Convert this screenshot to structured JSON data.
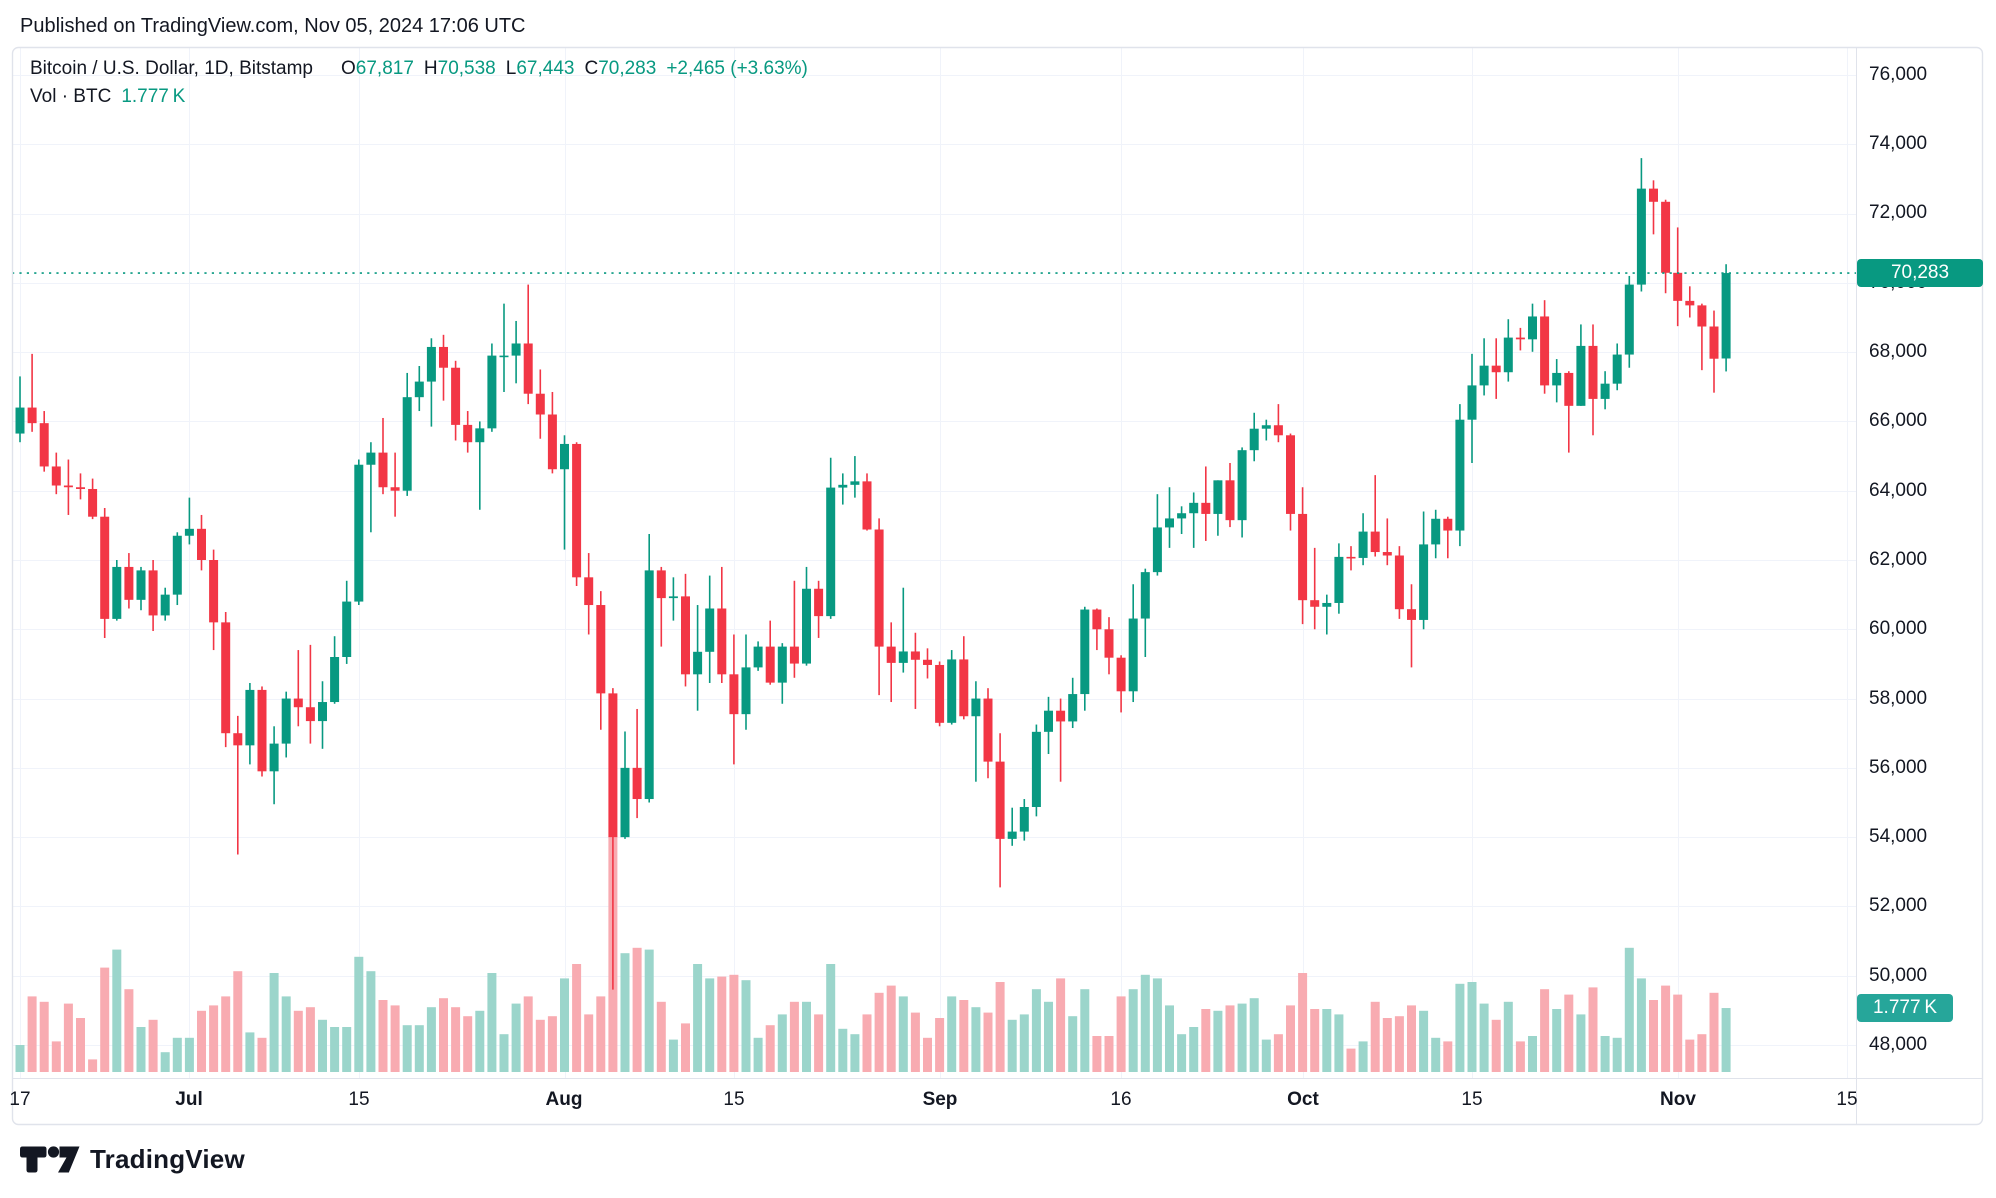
{
  "header": {
    "published_text": "Published on TradingView.com, Nov 05, 2024 17:06 UTC"
  },
  "legend": {
    "title": "Bitcoin / U.S. Dollar, 1D, Bitstamp",
    "o_label": "O",
    "o_value": "67,817",
    "h_label": "H",
    "h_value": "70,538",
    "l_label": "L",
    "l_value": "67,443",
    "c_label": "C",
    "c_value": "70,283",
    "change": "+2,465 (+3.63%)",
    "vol_label": "Vol · BTC",
    "vol_value": "1.777 K"
  },
  "badges": {
    "price": "70,283",
    "volume": "1.777 K"
  },
  "watermark": {
    "brand": "TradingView"
  },
  "colors": {
    "up": "#089981",
    "down": "#f23645",
    "vol_up": "#9bd5cb",
    "vol_down": "#f8abb1",
    "grid": "#f0f3fa",
    "border": "#e0e3eb",
    "text": "#131722",
    "accent": "#089981",
    "price_badge_bg": "#089981",
    "vol_badge_bg": "#26a69a"
  },
  "y_axis": {
    "labels": [
      {
        "text": "76,000",
        "value": 76000
      },
      {
        "text": "74,000",
        "value": 74000
      },
      {
        "text": "72,000",
        "value": 72000
      },
      {
        "text": "70,000",
        "value": 70000
      },
      {
        "text": "68,000",
        "value": 68000
      },
      {
        "text": "66,000",
        "value": 66000
      },
      {
        "text": "64,000",
        "value": 64000
      },
      {
        "text": "62,000",
        "value": 62000
      },
      {
        "text": "60,000",
        "value": 60000
      },
      {
        "text": "58,000",
        "value": 58000
      },
      {
        "text": "56,000",
        "value": 56000
      },
      {
        "text": "54,000",
        "value": 54000
      },
      {
        "text": "52,000",
        "value": 52000
      },
      {
        "text": "50,000",
        "value": 50000
      },
      {
        "text": "48,000",
        "value": 48000
      }
    ]
  },
  "x_axis": {
    "labels": [
      {
        "text": "17",
        "day_index": 0,
        "bold": false
      },
      {
        "text": "Jul",
        "day_index": 14,
        "bold": true
      },
      {
        "text": "15",
        "day_index": 28,
        "bold": false
      },
      {
        "text": "Aug",
        "day_index": 45,
        "bold": true
      },
      {
        "text": "15",
        "day_index": 59,
        "bold": false
      },
      {
        "text": "Sep",
        "day_index": 76,
        "bold": true
      },
      {
        "text": "16",
        "day_index": 91,
        "bold": false
      },
      {
        "text": "Oct",
        "day_index": 106,
        "bold": true
      },
      {
        "text": "15",
        "day_index": 120,
        "bold": false
      },
      {
        "text": "Nov",
        "day_index": 137,
        "bold": true
      },
      {
        "text": "15",
        "day_index": 151,
        "bold": false
      }
    ]
  },
  "chart_data": {
    "type": "candlestick+volume",
    "symbol": "Bitcoin / U.S. Dollar",
    "interval": "1D",
    "exchange": "Bitstamp",
    "title": "Bitcoin / U.S. Dollar, 1D, Bitstamp",
    "legend_position": "top-left",
    "grid": true,
    "ylim": [
      47000,
      76800
    ],
    "last_price": 70283,
    "last_ohlc": {
      "open": 67817,
      "high": 70538,
      "low": 67443,
      "close": 70283,
      "change": 2465,
      "change_pct": 3.63
    },
    "last_volume_btc_k": 1.777,
    "volume_unit": "K BTC",
    "candles_format": [
      "date",
      "open",
      "high",
      "low",
      "close",
      "volume_k"
    ],
    "candles": [
      [
        "2024-06-16",
        65900,
        66700,
        65500,
        66550,
        0.5
      ],
      [
        "2024-06-17",
        65650,
        67300,
        65400,
        66400,
        0.75
      ],
      [
        "2024-06-18",
        66400,
        67950,
        65700,
        65950,
        2.1
      ],
      [
        "2024-06-19",
        65950,
        66300,
        64550,
        64700,
        1.95
      ],
      [
        "2024-06-20",
        64700,
        65100,
        63900,
        64150,
        0.85
      ],
      [
        "2024-06-21",
        64150,
        64900,
        63300,
        64100,
        1.9
      ],
      [
        "2024-06-22",
        64100,
        64500,
        63750,
        64050,
        1.5
      ],
      [
        "2024-06-23",
        64050,
        64350,
        63180,
        63250,
        0.35
      ],
      [
        "2024-06-24",
        63250,
        63500,
        59750,
        60300,
        2.9
      ],
      [
        "2024-06-25",
        60300,
        62000,
        60250,
        61800,
        3.4
      ],
      [
        "2024-06-26",
        61800,
        62200,
        60600,
        60850,
        2.3
      ],
      [
        "2024-06-27",
        60850,
        61800,
        60550,
        61700,
        1.25
      ],
      [
        "2024-06-28",
        61700,
        62000,
        59950,
        60400,
        1.45
      ],
      [
        "2024-06-29",
        60400,
        61200,
        60250,
        61000,
        0.55
      ],
      [
        "2024-06-30",
        61000,
        62800,
        60700,
        62700,
        0.95
      ],
      [
        "2024-07-01",
        62700,
        63800,
        62450,
        62900,
        0.95
      ],
      [
        "2024-07-02",
        62900,
        63300,
        61700,
        62000,
        1.7
      ],
      [
        "2024-07-03",
        62000,
        62300,
        59400,
        60200,
        1.85
      ],
      [
        "2024-07-04",
        60200,
        60500,
        56600,
        57000,
        2.1
      ],
      [
        "2024-07-05",
        57000,
        57500,
        53500,
        56650,
        2.8
      ],
      [
        "2024-07-06",
        56650,
        58450,
        56100,
        58250,
        1.1
      ],
      [
        "2024-07-07",
        58250,
        58350,
        55750,
        55900,
        0.95
      ],
      [
        "2024-07-08",
        55900,
        57200,
        54950,
        56700,
        2.75
      ],
      [
        "2024-07-09",
        56700,
        58200,
        56300,
        58000,
        2.1
      ],
      [
        "2024-07-10",
        58000,
        59400,
        57200,
        57750,
        1.7
      ],
      [
        "2024-07-11",
        57750,
        59550,
        56700,
        57350,
        1.8
      ],
      [
        "2024-07-12",
        57350,
        58500,
        56550,
        57900,
        1.45
      ],
      [
        "2024-07-13",
        57900,
        59800,
        57850,
        59200,
        1.25
      ],
      [
        "2024-07-14",
        59200,
        61400,
        59000,
        60800,
        1.25
      ],
      [
        "2024-07-15",
        60800,
        64900,
        60700,
        64750,
        3.2
      ],
      [
        "2024-07-16",
        64750,
        65400,
        62800,
        65100,
        2.8
      ],
      [
        "2024-07-17",
        65100,
        66100,
        63900,
        64100,
        2.0
      ],
      [
        "2024-07-18",
        64100,
        65100,
        63250,
        64000,
        1.85
      ],
      [
        "2024-07-19",
        64000,
        67400,
        63850,
        66700,
        1.3
      ],
      [
        "2024-07-20",
        66700,
        67600,
        66300,
        67150,
        1.3
      ],
      [
        "2024-07-21",
        67150,
        68400,
        65850,
        68150,
        1.8
      ],
      [
        "2024-07-22",
        68150,
        68500,
        66600,
        67550,
        2.05
      ],
      [
        "2024-07-23",
        67550,
        67750,
        65450,
        65900,
        1.8
      ],
      [
        "2024-07-24",
        65900,
        66300,
        65100,
        65400,
        1.55
      ],
      [
        "2024-07-25",
        65400,
        66000,
        63450,
        65800,
        1.7
      ],
      [
        "2024-07-26",
        65800,
        68250,
        65700,
        67900,
        2.75
      ],
      [
        "2024-07-27",
        67900,
        69400,
        66850,
        67900,
        1.05
      ],
      [
        "2024-07-28",
        67900,
        68900,
        67100,
        68250,
        1.9
      ],
      [
        "2024-07-29",
        68250,
        69950,
        66500,
        66800,
        2.1
      ],
      [
        "2024-07-30",
        66800,
        67500,
        65500,
        66200,
        1.45
      ],
      [
        "2024-07-31",
        66200,
        66850,
        64500,
        64620,
        1.55
      ],
      [
        "2024-08-01",
        64620,
        65600,
        62300,
        65350,
        2.6
      ],
      [
        "2024-08-02",
        65350,
        65400,
        61250,
        61500,
        3.0
      ],
      [
        "2024-08-03",
        61500,
        62200,
        59850,
        60700,
        1.6
      ],
      [
        "2024-08-04",
        60700,
        61100,
        57100,
        58150,
        2.1
      ],
      [
        "2024-08-05",
        58150,
        58300,
        49600,
        54000,
        6.55
      ],
      [
        "2024-08-06",
        54000,
        57050,
        53950,
        56000,
        3.3
      ],
      [
        "2024-08-07",
        56000,
        57700,
        54550,
        55100,
        3.45
      ],
      [
        "2024-08-08",
        55100,
        62750,
        55000,
        61700,
        3.4
      ],
      [
        "2024-08-09",
        61700,
        61800,
        59500,
        60900,
        1.95
      ],
      [
        "2024-08-10",
        60900,
        61500,
        60250,
        60950,
        0.9
      ],
      [
        "2024-08-11",
        60950,
        61600,
        58350,
        58700,
        1.35
      ],
      [
        "2024-08-12",
        58700,
        60700,
        57650,
        59350,
        3.0
      ],
      [
        "2024-08-13",
        59350,
        61550,
        58450,
        60600,
        2.6
      ],
      [
        "2024-08-14",
        60600,
        61800,
        58450,
        58700,
        2.65
      ],
      [
        "2024-08-15",
        58700,
        59850,
        56100,
        57550,
        2.7
      ],
      [
        "2024-08-16",
        57550,
        59850,
        57100,
        58900,
        2.55
      ],
      [
        "2024-08-17",
        58900,
        59650,
        58800,
        59500,
        0.95
      ],
      [
        "2024-08-18",
        59500,
        60250,
        58400,
        58460,
        1.3
      ],
      [
        "2024-08-19",
        58460,
        59600,
        57850,
        59500,
        1.6
      ],
      [
        "2024-08-20",
        59500,
        61400,
        58600,
        59010,
        1.95
      ],
      [
        "2024-08-21",
        59010,
        61800,
        58950,
        61170,
        1.95
      ],
      [
        "2024-08-22",
        61170,
        61400,
        59750,
        60380,
        1.6
      ],
      [
        "2024-08-23",
        60380,
        64950,
        60300,
        64090,
        3.0
      ],
      [
        "2024-08-24",
        64090,
        64500,
        63600,
        64170,
        1.2
      ],
      [
        "2024-08-25",
        64170,
        65000,
        63800,
        64270,
        1.05
      ],
      [
        "2024-08-26",
        64270,
        64500,
        62850,
        62880,
        1.6
      ],
      [
        "2024-08-27",
        62880,
        63200,
        58100,
        59500,
        2.2
      ],
      [
        "2024-08-28",
        59500,
        60200,
        57900,
        59030,
        2.4
      ],
      [
        "2024-08-29",
        59030,
        61200,
        58750,
        59360,
        2.1
      ],
      [
        "2024-08-30",
        59360,
        59900,
        57700,
        59120,
        1.65
      ],
      [
        "2024-08-31",
        59120,
        59450,
        58580,
        58970,
        0.95
      ],
      [
        "2024-09-01",
        58970,
        59070,
        57200,
        57300,
        1.5
      ],
      [
        "2024-09-02",
        57300,
        59400,
        57250,
        59130,
        2.1
      ],
      [
        "2024-09-03",
        59130,
        59800,
        57400,
        57490,
        2.0
      ],
      [
        "2024-09-04",
        57490,
        58500,
        55600,
        58000,
        1.8
      ],
      [
        "2024-09-05",
        58000,
        58300,
        55700,
        56180,
        1.65
      ],
      [
        "2024-09-06",
        56180,
        57000,
        52550,
        53950,
        2.5
      ],
      [
        "2024-09-07",
        53950,
        54850,
        53750,
        54160,
        1.45
      ],
      [
        "2024-09-08",
        54160,
        55100,
        53900,
        54870,
        1.6
      ],
      [
        "2024-09-09",
        54870,
        57250,
        54600,
        57040,
        2.3
      ],
      [
        "2024-09-10",
        57040,
        58050,
        56400,
        57650,
        1.95
      ],
      [
        "2024-09-11",
        57650,
        58000,
        55600,
        57340,
        2.6
      ],
      [
        "2024-09-12",
        57340,
        58600,
        57150,
        58130,
        1.55
      ],
      [
        "2024-09-13",
        58130,
        60650,
        57650,
        60570,
        2.3
      ],
      [
        "2024-09-14",
        60570,
        60600,
        59400,
        60000,
        1.0
      ],
      [
        "2024-09-15",
        60000,
        60350,
        58700,
        59180,
        1.0
      ],
      [
        "2024-09-16",
        59180,
        59250,
        57600,
        58210,
        2.1
      ],
      [
        "2024-09-17",
        58210,
        61300,
        57900,
        60310,
        2.3
      ],
      [
        "2024-09-18",
        60310,
        61750,
        59200,
        61650,
        2.7
      ],
      [
        "2024-09-19",
        61650,
        63900,
        61550,
        62940,
        2.6
      ],
      [
        "2024-09-20",
        62940,
        64100,
        62350,
        63200,
        1.85
      ],
      [
        "2024-09-21",
        63200,
        63550,
        62750,
        63350,
        1.05
      ],
      [
        "2024-09-22",
        63350,
        63950,
        62350,
        63650,
        1.25
      ],
      [
        "2024-09-23",
        63650,
        64700,
        62550,
        63330,
        1.75
      ],
      [
        "2024-09-24",
        63330,
        64300,
        62700,
        64300,
        1.7
      ],
      [
        "2024-09-25",
        64300,
        64800,
        62950,
        63150,
        1.85
      ],
      [
        "2024-09-26",
        63150,
        65250,
        62650,
        65170,
        1.9
      ],
      [
        "2024-09-27",
        65170,
        66250,
        64850,
        65790,
        2.05
      ],
      [
        "2024-09-28",
        65790,
        66050,
        65450,
        65890,
        0.9
      ],
      [
        "2024-09-29",
        65890,
        66500,
        65400,
        65600,
        1.05
      ],
      [
        "2024-09-30",
        65600,
        65650,
        62850,
        63330,
        1.85
      ],
      [
        "2024-10-01",
        63330,
        64100,
        60150,
        60840,
        2.75
      ],
      [
        "2024-10-02",
        60840,
        62350,
        60000,
        60650,
        1.75
      ],
      [
        "2024-10-03",
        60650,
        61000,
        59850,
        60760,
        1.75
      ],
      [
        "2024-10-04",
        60760,
        62480,
        60450,
        62090,
        1.6
      ],
      [
        "2024-10-05",
        62090,
        62400,
        61700,
        62060,
        0.65
      ],
      [
        "2024-10-06",
        62060,
        63350,
        61850,
        62820,
        0.85
      ],
      [
        "2024-10-07",
        62820,
        64450,
        62100,
        62230,
        1.95
      ],
      [
        "2024-10-08",
        62230,
        63200,
        61850,
        62130,
        1.5
      ],
      [
        "2024-10-09",
        62130,
        62400,
        60300,
        60580,
        1.55
      ],
      [
        "2024-10-10",
        60580,
        61300,
        58900,
        60270,
        1.85
      ],
      [
        "2024-10-11",
        60270,
        63400,
        60000,
        62450,
        1.7
      ],
      [
        "2024-10-12",
        62450,
        63450,
        62050,
        63190,
        0.95
      ],
      [
        "2024-10-13",
        63190,
        63250,
        62050,
        62850,
        0.85
      ],
      [
        "2024-10-14",
        62850,
        66500,
        62400,
        66050,
        2.45
      ],
      [
        "2024-10-15",
        66050,
        67950,
        64800,
        67040,
        2.5
      ],
      [
        "2024-10-16",
        67040,
        68400,
        66750,
        67610,
        1.9
      ],
      [
        "2024-10-17",
        67610,
        68400,
        66650,
        67420,
        1.45
      ],
      [
        "2024-10-18",
        67420,
        68950,
        67150,
        68420,
        1.95
      ],
      [
        "2024-10-19",
        68420,
        68700,
        68050,
        68370,
        0.85
      ],
      [
        "2024-10-20",
        68370,
        69400,
        68010,
        69030,
        1.0
      ],
      [
        "2024-10-21",
        69030,
        69500,
        66800,
        67040,
        2.3
      ],
      [
        "2024-10-22",
        67040,
        67800,
        66550,
        67400,
        1.75
      ],
      [
        "2024-10-23",
        67400,
        67450,
        65100,
        66450,
        2.15
      ],
      [
        "2024-10-24",
        66450,
        68800,
        66450,
        68180,
        1.6
      ],
      [
        "2024-10-25",
        68180,
        68800,
        65600,
        66650,
        2.35
      ],
      [
        "2024-10-26",
        66650,
        67450,
        66350,
        67090,
        1.0
      ],
      [
        "2024-10-27",
        67090,
        68250,
        66900,
        67930,
        0.95
      ],
      [
        "2024-10-28",
        67930,
        70200,
        67550,
        69950,
        3.45
      ],
      [
        "2024-10-29",
        69950,
        73600,
        69750,
        72720,
        2.6
      ],
      [
        "2024-10-30",
        72720,
        72960,
        71400,
        72340,
        2.0
      ],
      [
        "2024-10-31",
        72340,
        72400,
        69700,
        70290,
        2.4
      ],
      [
        "2024-11-01",
        70290,
        71600,
        68750,
        69480,
        2.15
      ],
      [
        "2024-11-02",
        69480,
        69900,
        69000,
        69350,
        0.9
      ],
      [
        "2024-11-03",
        69350,
        69400,
        67480,
        68740,
        1.05
      ],
      [
        "2024-11-04",
        68740,
        69200,
        66830,
        67810,
        2.2
      ],
      [
        "2024-11-05",
        67817,
        70538,
        67443,
        70283,
        1.777
      ]
    ]
  }
}
